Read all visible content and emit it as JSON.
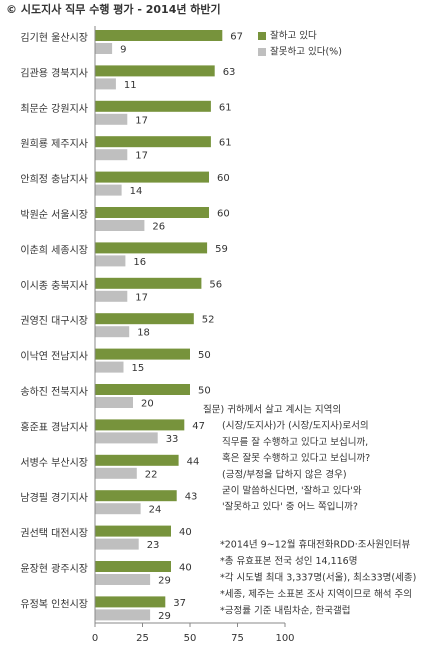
{
  "chart_data": {
    "type": "barh",
    "title": "© 시도지사 직무 수행 평가 - 2014년 하반기",
    "categories": [
      "김기현 울산시장",
      "김관용 경북지사",
      "최문순 강원지사",
      "원희룡 제주지사",
      "안희정 충남지사",
      "박원순 서울시장",
      "이춘희 세종시장",
      "이시종 충북지사",
      "권영진 대구시장",
      "이낙연 전남지사",
      "송하진 전북지사",
      "홍준표 경남지사",
      "서병수 부산시장",
      "남경필 경기지사",
      "권선택 대전시장",
      "윤장현 광주시장",
      "유정복 인천시장"
    ],
    "series": [
      {
        "name": "잘하고 있다",
        "color": "#77933c",
        "values": [
          67,
          63,
          61,
          61,
          60,
          60,
          59,
          56,
          52,
          50,
          50,
          47,
          44,
          43,
          40,
          40,
          37
        ]
      },
      {
        "name": "잘못하고 있다(%)",
        "color": "#bfbfbf",
        "values": [
          9,
          11,
          17,
          17,
          14,
          26,
          16,
          17,
          18,
          15,
          20,
          33,
          22,
          24,
          23,
          29,
          29
        ]
      }
    ],
    "xlim": [
      0,
      100
    ],
    "xticks": [
      0,
      25,
      50,
      75,
      100
    ],
    "question": [
      "질문) 귀하께서 살고 계시는 지역의",
      "(시장/도지사)가 (시장/도지사)로서의",
      "직무를 잘 수행하고 있다고 보십니까,",
      "혹은 잘못 수행하고 있다고 보십니까?",
      "(긍정/부정을 답하지 않은 경우)",
      "굳이 말씀하신다면, '잘하고 있다'와",
      "'잘못하고 있다' 중 어느 쪽입니까?"
    ],
    "notes": [
      "*2014년 9~12월 휴대전화RDD·조사원인터뷰",
      "*총 유효표본 전국 성인 14,116명",
      "*각 시도별 최대 3,337명(서울), 최소33명(세종)",
      "*세종, 제주는 소표본 조사 지역이므로 해석 주의",
      "*긍정률 기준 내림차순, 한국갤럽"
    ]
  }
}
